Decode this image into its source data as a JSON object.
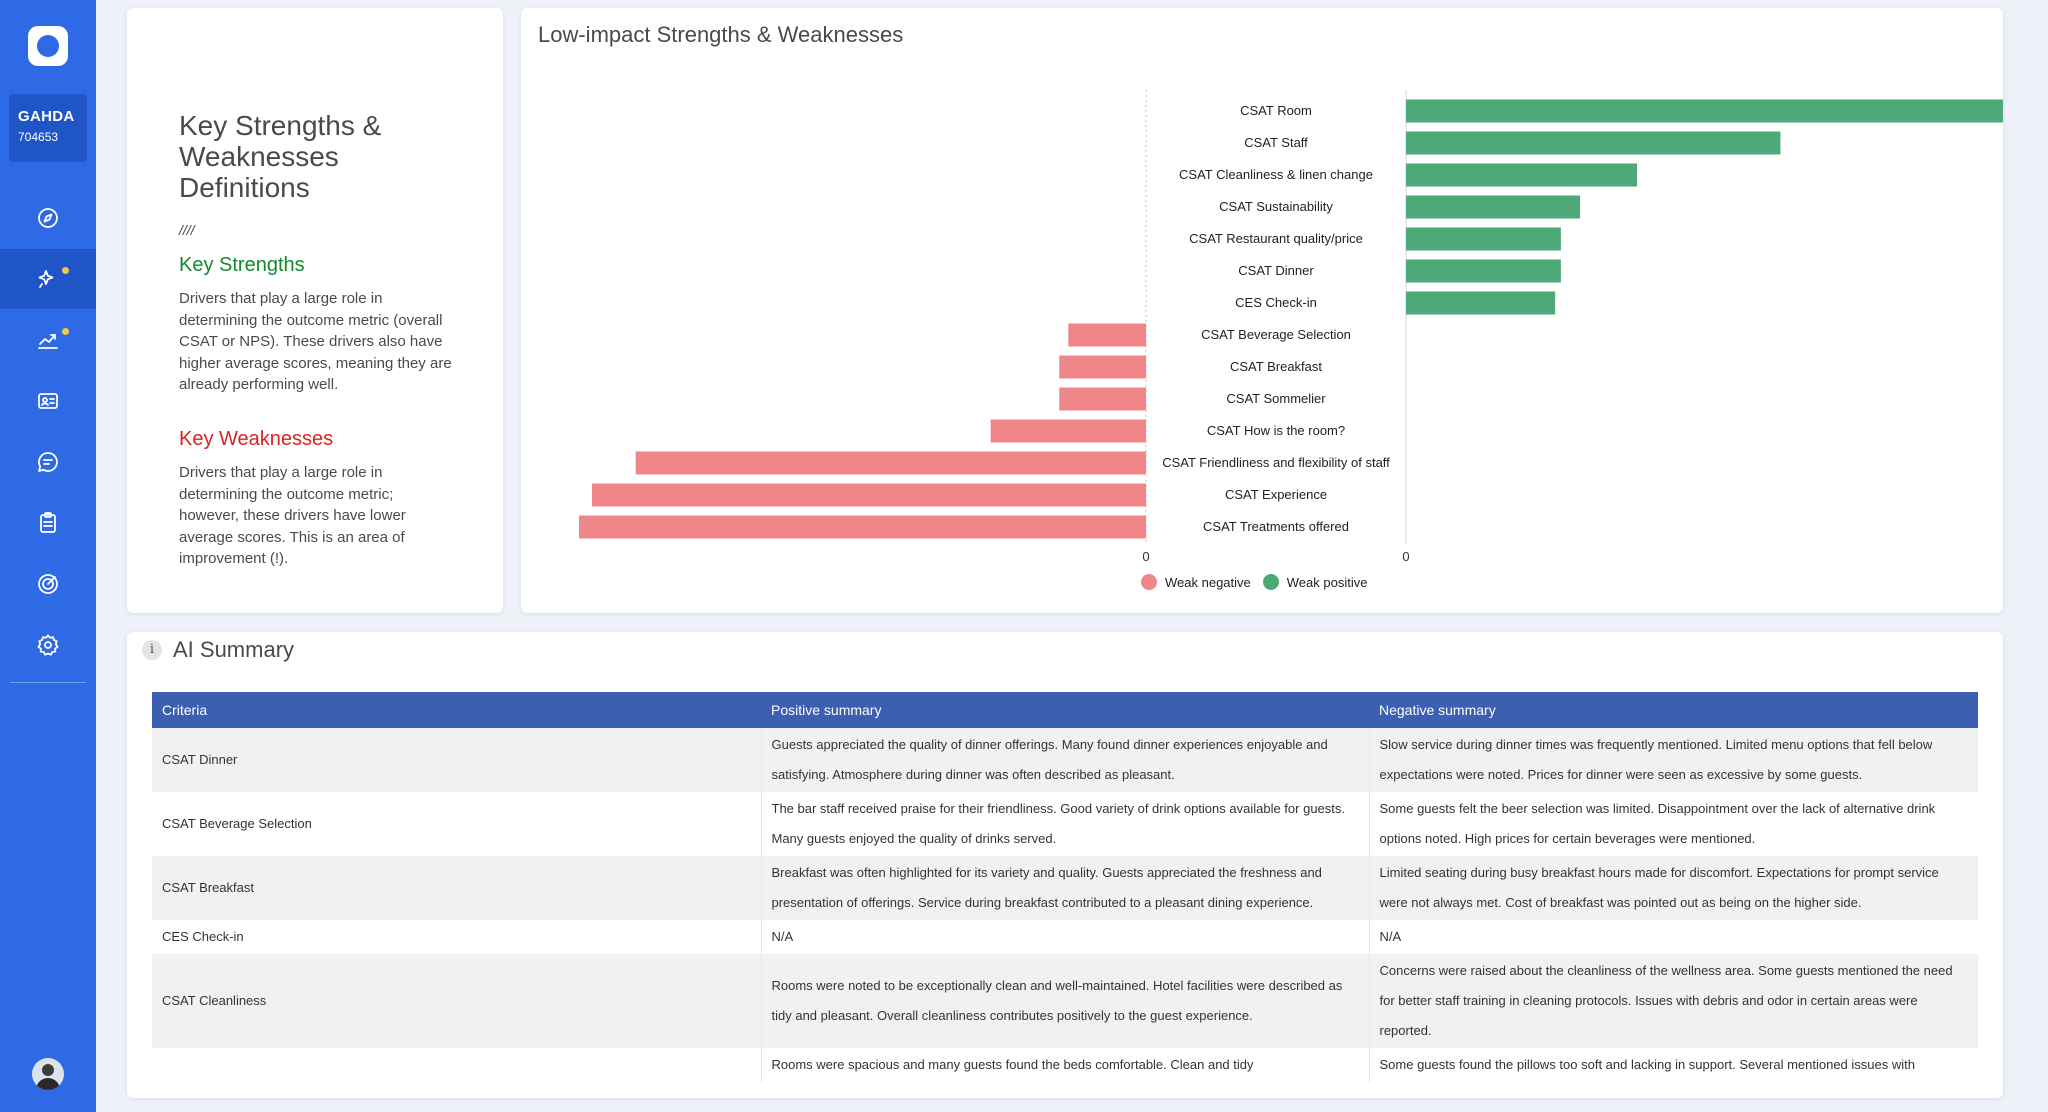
{
  "account": {
    "name": "GAHDA",
    "id": "704653"
  },
  "nav": [
    {
      "name": "explore-icon"
    },
    {
      "name": "ai-sparkle-icon",
      "active": true,
      "dot": true
    },
    {
      "name": "trend-chart-icon",
      "dot": true
    },
    {
      "name": "contact-card-icon"
    },
    {
      "name": "chat-bubble-icon"
    },
    {
      "name": "clipboard-icon"
    },
    {
      "name": "target-icon"
    },
    {
      "name": "settings-gear-icon"
    }
  ],
  "definitions": {
    "title": "Key Strengths & Weaknesses Definitions",
    "slashes": "////",
    "strengths_heading": "Key Strengths",
    "strengths_text": "Drivers that play a large role in determining the outcome metric (overall CSAT or NPS). These drivers also have higher average scores, meaning they are already performing well.",
    "weaknesses_heading": "Key Weaknesses",
    "weaknesses_text": "Drivers that play a large role in determining the outcome metric; however, these drivers have lower average scores. This is an area of improvement (!).",
    "strength_color": "#138a2e",
    "weakness_color": "#d92323"
  },
  "chart_data": {
    "type": "bar",
    "orientation": "horizontal",
    "title": "Low-impact Strengths & Weaknesses",
    "categories": [
      "CSAT Room",
      "CSAT Staff",
      "CSAT Cleanliness & linen change",
      "CSAT Sustainability",
      "CSAT Restaurant quality/price",
      "CSAT Dinner",
      "CES Check-in",
      "CSAT Beverage Selection",
      "CSAT Breakfast",
      "CSAT Sommelier",
      "CSAT How is the room?",
      "CSAT Friendliness and flexibility of staff",
      "CSAT Experience",
      "CSAT Treatments offered"
    ],
    "series": [
      {
        "name": "Weak negative",
        "color": "#f0868a",
        "values": [
          0,
          0,
          0,
          0,
          0,
          0,
          0,
          -0.137,
          -0.153,
          -0.153,
          -0.274,
          -0.9,
          -0.977,
          -1.0
        ]
      },
      {
        "name": "Weak positive",
        "color": "#4fa878",
        "values": [
          1.0,
          0.585,
          0.361,
          0.272,
          0.242,
          0.242,
          0.233,
          0,
          0,
          0,
          0,
          0,
          0,
          0
        ]
      }
    ],
    "negative_axis_zero_label": "0",
    "positive_axis_zero_label": "0",
    "legend_position": "bottom"
  },
  "summary": {
    "info_icon": "i",
    "title": "AI Summary",
    "headers": [
      "Criteria",
      "Positive summary",
      "Negative summary"
    ],
    "rows": [
      {
        "criteria": "CSAT Dinner",
        "positive": "Guests appreciated the quality of dinner offerings. Many found dinner experiences enjoyable and satisfying. Atmosphere during dinner was often described as pleasant.",
        "negative": "Slow service during dinner times was frequently mentioned. Limited menu options that fell below expectations were noted. Prices for dinner were seen as excessive by some guests."
      },
      {
        "criteria": "CSAT Beverage Selection",
        "positive": "The bar staff received praise for their friendliness. Good variety of drink options available for guests. Many guests enjoyed the quality of drinks served.",
        "negative": "Some guests felt the beer selection was limited. Disappointment over the lack of alternative drink options noted. High prices for certain beverages were mentioned."
      },
      {
        "criteria": "CSAT Breakfast",
        "positive": "Breakfast was often highlighted for its variety and quality. Guests appreciated the freshness and presentation of offerings. Service during breakfast contributed to a pleasant dining experience.",
        "negative": "Limited seating during busy breakfast hours made for discomfort. Expectations for prompt service were not always met. Cost of breakfast was pointed out as being on the higher side."
      },
      {
        "criteria": "CES Check-in",
        "positive": "N/A",
        "negative": "N/A"
      },
      {
        "criteria": "CSAT Cleanliness",
        "positive": "Rooms were noted to be exceptionally clean and well-maintained. Hotel facilities were described as tidy and pleasant. Overall cleanliness contributes positively to the guest experience.",
        "negative": "Concerns were raised about the cleanliness of the wellness area. Some guests mentioned the need for better staff training in cleaning protocols. Issues with debris and odor in certain areas were reported."
      },
      {
        "criteria": "",
        "positive": "Rooms were spacious and many guests found the beds comfortable. Clean and tidy",
        "negative": "Some guests found the pillows too soft and lacking in support. Several mentioned issues with"
      }
    ]
  }
}
